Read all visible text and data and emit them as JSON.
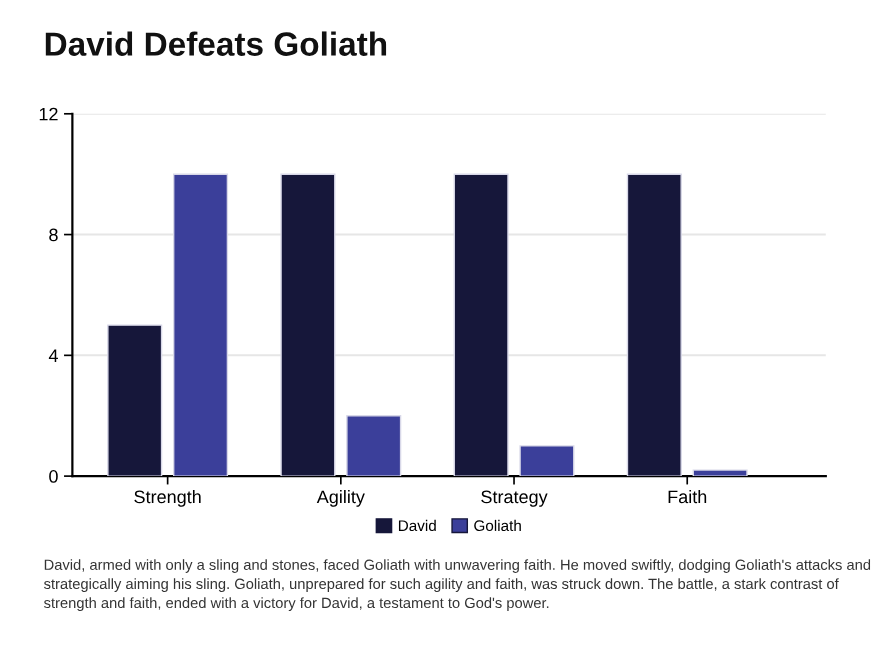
{
  "chart_data": {
    "type": "bar",
    "title": "David Defeats Goliath",
    "categories": [
      "Strength",
      "Agility",
      "Strategy",
      "Faith"
    ],
    "series": [
      {
        "name": "David",
        "color": "#16173a",
        "values": [
          5,
          10,
          10,
          10
        ]
      },
      {
        "name": "Goliath",
        "color": "#3b3f9a",
        "values": [
          10,
          2,
          1,
          0.2
        ]
      }
    ],
    "ylim": [
      0,
      12
    ],
    "yticks": [
      0,
      4,
      8,
      12
    ],
    "grid": "y",
    "legend": "bottom",
    "annotations": [
      "David, armed with only a sling and stones, faced Goliath with unwavering faith. He moved swiftly, dodging Goliath's attacks and strategically aiming his sling. Goliath, unprepared for such agility and faith, was struck down. The battle, a stark contrast of strength and faith, ended with a victory for David, a testament to God's power."
    ]
  }
}
